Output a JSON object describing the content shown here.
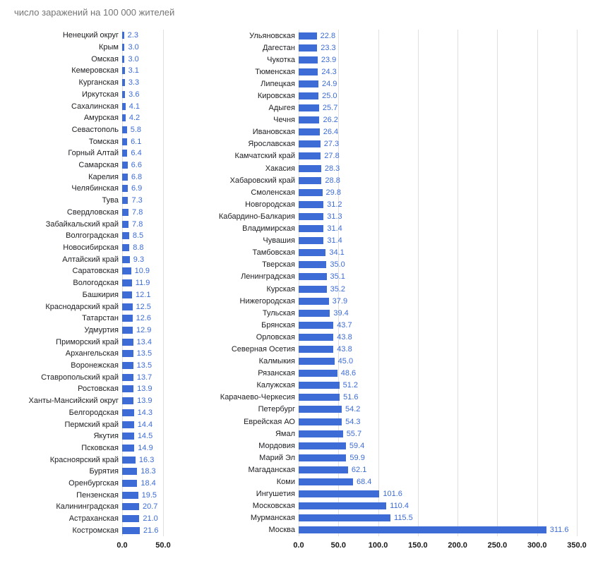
{
  "title": "число заражений на 100 000 жителей",
  "colors": {
    "bar": "#3d6cd6",
    "value_label": "#3d6cd6",
    "grid": "#e0e0e0",
    "title": "#757575",
    "axis_label": "#1a1a1a"
  },
  "chart_data": {
    "type": "bar",
    "orientation": "horizontal",
    "title": "число заражений на 100 000 жителей",
    "legend": "none",
    "grid": true,
    "panels": [
      {
        "xmax": 50,
        "ticks": [
          "0.0",
          "50.0"
        ],
        "categories": [
          "Ненецкий округ",
          "Крым",
          "Омская",
          "Кемеровская",
          "Курганская",
          "Иркутская",
          "Сахалинская",
          "Амурская",
          "Севастополь",
          "Томская",
          "Горный Алтай",
          "Самарская",
          "Карелия",
          "Челябинская",
          "Тува",
          "Свердловская",
          "Забайкальский край",
          "Волгоградская",
          "Новосибирская",
          "Алтайский край",
          "Саратовская",
          "Вологодская",
          "Башкирия",
          "Краснодарский край",
          "Татарстан",
          "Удмуртия",
          "Приморский край",
          "Архангельская",
          "Воронежская",
          "Ставропольский край",
          "Ростовская",
          "Ханты-Мансийский округ",
          "Белгородская",
          "Пермский край",
          "Якутия",
          "Псковская",
          "Красноярский край",
          "Бурятия",
          "Оренбургская",
          "Пензенская",
          "Калининградская",
          "Астраханская",
          "Костромская"
        ],
        "values": [
          "2.3",
          "3.0",
          "3.0",
          "3.1",
          "3.3",
          "3.6",
          "4.1",
          "4.2",
          "5.8",
          "6.1",
          "6.4",
          "6.6",
          "6.8",
          "6.9",
          "7.3",
          "7.8",
          "7.8",
          "8.5",
          "8.8",
          "9.3",
          "10.9",
          "11.9",
          "12.1",
          "12.5",
          "12.6",
          "12.9",
          "13.4",
          "13.5",
          "13.5",
          "13.7",
          "13.9",
          "13.9",
          "14.3",
          "14.4",
          "14.5",
          "14.9",
          "16.3",
          "18.3",
          "18.4",
          "19.5",
          "20.7",
          "21.0",
          "21.6"
        ]
      },
      {
        "xmax": 350,
        "ticks": [
          "0.0",
          "50.0",
          "100.0",
          "150.0",
          "200.0",
          "250.0",
          "300.0",
          "350.0"
        ],
        "categories": [
          "Ульяновская",
          "Дагестан",
          "Чукотка",
          "Тюменская",
          "Липецкая",
          "Кировская",
          "Адыгея",
          "Чечня",
          "Ивановская",
          "Ярославская",
          "Камчатский край",
          "Хакасия",
          "Хабаровский край",
          "Смоленская",
          "Новгородская",
          "Кабардино-Балкария",
          "Владимирская",
          "Чувашия",
          "Тамбовская",
          "Тверская",
          "Ленинградская",
          "Курская",
          "Нижегородская",
          "Тульская",
          "Брянская",
          "Орловская",
          "Северная Осетия",
          "Калмыкия",
          "Рязанская",
          "Калужская",
          "Карачаево-Черкесия",
          "Петербург",
          "Еврейская АО",
          "Ямал",
          "Мордовия",
          "Марий Эл",
          "Магаданская",
          "Коми",
          "Ингушетия",
          "Московская",
          "Мурманская",
          "Москва"
        ],
        "values": [
          "22.8",
          "23.3",
          "23.9",
          "24.3",
          "24.9",
          "25.0",
          "25.7",
          "26.2",
          "26.4",
          "27.3",
          "27.8",
          "28.3",
          "28.8",
          "29.8",
          "31.2",
          "31.3",
          "31.4",
          "31.4",
          "34.1",
          "35.0",
          "35.1",
          "35.2",
          "37.9",
          "39.4",
          "43.7",
          "43.8",
          "43.8",
          "45.0",
          "48.6",
          "51.2",
          "51.6",
          "54.2",
          "54.3",
          "55.7",
          "59.4",
          "59.9",
          "62.1",
          "68.4",
          "101.6",
          "110.4",
          "115.5",
          "311.6"
        ]
      }
    ]
  }
}
